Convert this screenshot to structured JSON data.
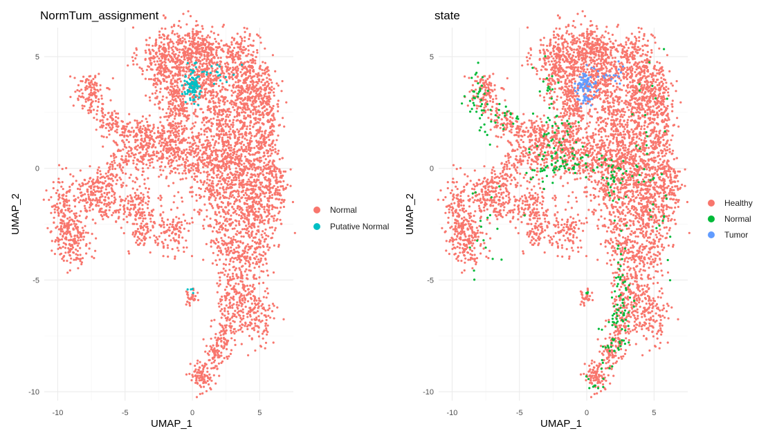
{
  "chart_data": [
    {
      "type": "scatter",
      "title": "NormTum_assignment",
      "xlabel": "UMAP_1",
      "ylabel": "UMAP_2",
      "xlim": [
        -11,
        7.5
      ],
      "ylim": [
        -10.4,
        6.3
      ],
      "x_ticks": [
        -10,
        -5,
        0,
        5
      ],
      "y_ticks": [
        5,
        0,
        -5,
        -10
      ],
      "x_tick_labels": [
        "-10",
        "-5",
        "0",
        "5"
      ],
      "y_tick_labels": [
        "5",
        "0",
        "-5",
        "-10"
      ],
      "grid": true,
      "legend_position": "right",
      "series": [
        {
          "name": "Normal",
          "color": "#F8766D"
        },
        {
          "name": "Putative Normal",
          "color": "#00BFC4"
        }
      ]
    },
    {
      "type": "scatter",
      "title": "state",
      "xlabel": "UMAP_1",
      "ylabel": "UMAP_2",
      "xlim": [
        -11,
        7.5
      ],
      "ylim": [
        -10.4,
        6.3
      ],
      "x_ticks": [
        -10,
        -5,
        0,
        5
      ],
      "y_ticks": [
        5,
        0,
        -5,
        -10
      ],
      "x_tick_labels": [
        "-10",
        "-5",
        "0",
        "5"
      ],
      "y_tick_labels": [
        "5",
        "0",
        "-5",
        "-10"
      ],
      "grid": true,
      "legend_position": "right",
      "series": [
        {
          "name": "Healthy",
          "color": "#F8766D"
        },
        {
          "name": "Normal",
          "color": "#00BA38"
        },
        {
          "name": "Tumor",
          "color": "#619CFF"
        }
      ]
    }
  ]
}
